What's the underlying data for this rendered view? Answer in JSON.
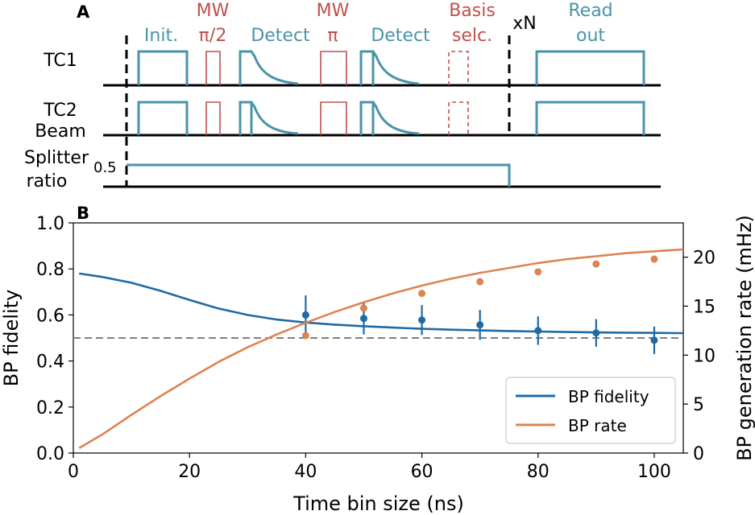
{
  "panel_a": {
    "panel_label": "A",
    "rows": {
      "tc1": "TC1",
      "tc2_line1": "TC2",
      "tc2_line2": "Beam",
      "splitter_line1": "Splitter",
      "splitter_line2": "ratio"
    },
    "splitter_value_label": "0.5",
    "repeat_label": "xN",
    "stages": {
      "init": "Init.",
      "mw1_line1": "MW",
      "mw1_line2": "π/2",
      "detect1": "Detect",
      "mw2_line1": "MW",
      "mw2_line2": "π",
      "detect2": "Detect",
      "basis_line1": "Basis",
      "basis_line2": "selc.",
      "readout_line1": "Read",
      "readout_line2": "out"
    }
  },
  "colors": {
    "teal": "#4a94a8",
    "red": "#c0504d",
    "fidelity": "#1f6aa5",
    "rate": "#dd8452",
    "dashed_ref": "#808080"
  },
  "chart_data": {
    "type": "line",
    "panel_label": "B",
    "xlabel": "Time bin size (ns)",
    "ylabel_left": "BP fidelity",
    "ylabel_right": "BP generation rate (mHz)",
    "xlim": [
      0,
      105
    ],
    "ylim_left": [
      0.0,
      1.0
    ],
    "ylim_right": [
      0,
      23.5
    ],
    "x_ticks": [
      0,
      20,
      40,
      60,
      80,
      100
    ],
    "y_ticks_left": [
      "0.0",
      "0.2",
      "0.4",
      "0.6",
      "0.8",
      "1.0"
    ],
    "y_ticks_right": [
      "0",
      "5",
      "10",
      "15",
      "20"
    ],
    "reference_line": {
      "axis": "left",
      "y": 0.5,
      "style": "dashed"
    },
    "series": [
      {
        "name": "BP fidelity",
        "axis": "left",
        "fit_x": [
          1,
          5,
          10,
          15,
          20,
          25,
          30,
          35,
          40,
          45,
          50,
          55,
          60,
          65,
          70,
          75,
          80,
          85,
          90,
          95,
          100,
          105
        ],
        "fit_y": [
          0.78,
          0.765,
          0.74,
          0.705,
          0.665,
          0.628,
          0.6,
          0.58,
          0.567,
          0.558,
          0.551,
          0.545,
          0.54,
          0.536,
          0.533,
          0.53,
          0.528,
          0.526,
          0.524,
          0.523,
          0.522,
          0.521
        ],
        "points_x": [
          40,
          50,
          60,
          70,
          80,
          90,
          100
        ],
        "points_y": [
          0.6,
          0.585,
          0.578,
          0.557,
          0.532,
          0.522,
          0.49
        ],
        "errors": [
          0.085,
          0.07,
          0.065,
          0.065,
          0.062,
          0.06,
          0.06
        ]
      },
      {
        "name": "BP rate",
        "axis": "right",
        "fit_x": [
          1,
          5,
          10,
          15,
          20,
          25,
          30,
          35,
          40,
          45,
          50,
          55,
          60,
          65,
          70,
          75,
          80,
          85,
          90,
          95,
          100,
          105
        ],
        "fit_y": [
          0.5,
          1.9,
          3.9,
          5.8,
          7.6,
          9.3,
          10.8,
          12.1,
          13.3,
          14.4,
          15.4,
          16.3,
          17.1,
          17.8,
          18.4,
          18.9,
          19.4,
          19.8,
          20.1,
          20.4,
          20.6,
          20.8
        ],
        "points_x": [
          40,
          50,
          60,
          70,
          80,
          90,
          100
        ],
        "points_y": [
          12.0,
          14.8,
          16.3,
          17.5,
          18.5,
          19.3,
          19.8
        ],
        "errors": [
          0.35,
          0.3,
          0.3,
          0.3,
          0.3,
          0.3,
          0.35
        ]
      }
    ],
    "legend": {
      "position": "bottom-right",
      "entries": [
        "BP fidelity",
        "BP rate"
      ]
    }
  }
}
